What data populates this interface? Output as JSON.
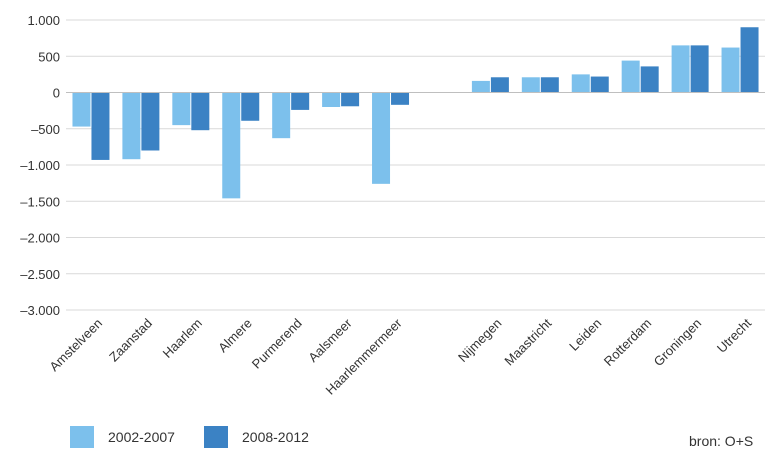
{
  "chart_data": {
    "type": "bar",
    "categories": [
      "Amstelveen",
      "Zaanstad",
      "Haarlem",
      "Almere",
      "Purmerend",
      "Aalsmeer",
      "Haarlemmermeer",
      "",
      "Nijmegen",
      "Maastricht",
      "Leiden",
      "Rotterdam",
      "Groningen",
      "Utrecht"
    ],
    "series": [
      {
        "name": "2002-2007",
        "color": "#7cc0ec",
        "values": [
          -470,
          -920,
          -450,
          -1460,
          -630,
          -200,
          -1260,
          null,
          160,
          210,
          250,
          440,
          650,
          620
        ]
      },
      {
        "name": "2008-2012",
        "color": "#3b82c4",
        "values": [
          -930,
          -800,
          -520,
          -390,
          -240,
          -190,
          -170,
          null,
          210,
          210,
          220,
          360,
          650,
          900
        ]
      }
    ],
    "ylim": [
      -3000,
      1000
    ],
    "yticks": [
      1000,
      500,
      0,
      -500,
      -1000,
      -1500,
      -2000,
      -2500,
      -3000
    ],
    "ytick_labels": [
      "1.000",
      "500",
      "0",
      "-500",
      "-1.000",
      "-1.500",
      "-2.000",
      "-2.500",
      "-3.000"
    ],
    "grid": true,
    "legend": "bottom-left"
  },
  "legend": {
    "item1": "2002-2007",
    "item2": "2008-2012",
    "color1": "#7cc0ec",
    "color2": "#3b82c4"
  },
  "source": "bron: O+S"
}
